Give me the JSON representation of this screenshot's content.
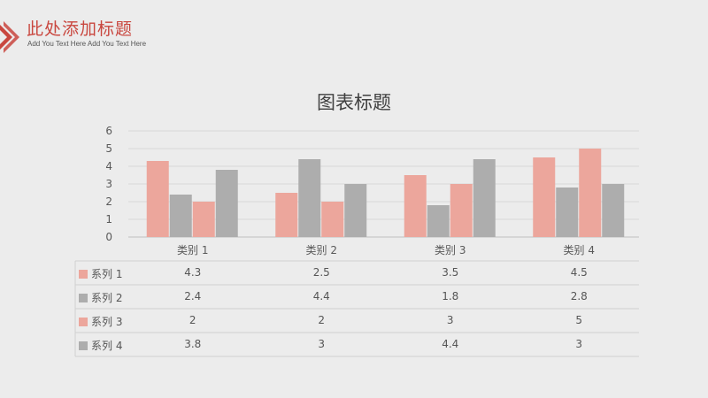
{
  "header": {
    "title": "此处添加标题",
    "subtitle": "Add You Text Here Add You Text Here",
    "accent_color": "#c9473f",
    "logo_icon": "chevron-diamond-icon"
  },
  "chart_data": {
    "type": "bar",
    "title": "图表标题",
    "categories": [
      "类别 1",
      "类别 2",
      "类别 3",
      "类别 4"
    ],
    "series": [
      {
        "name": "系列 1",
        "values": [
          4.3,
          2.5,
          3.5,
          4.5
        ],
        "color": "#eca69c"
      },
      {
        "name": "系列 2",
        "values": [
          2.4,
          4.4,
          1.8,
          2.8
        ],
        "color": "#adadad"
      },
      {
        "name": "系列 3",
        "values": [
          2,
          2,
          3,
          5
        ],
        "color": "#eca69c"
      },
      {
        "name": "系列 4",
        "values": [
          3.8,
          3,
          4.4,
          3
        ],
        "color": "#adadad"
      }
    ],
    "ylim": [
      0,
      6
    ],
    "y_ticks": [
      "0",
      "1",
      "2",
      "3",
      "4",
      "5",
      "6"
    ],
    "grid": true,
    "data_table": {
      "rows": [
        {
          "label": "系列 1",
          "cells": [
            "4.3",
            "2.5",
            "3.5",
            "4.5"
          ]
        },
        {
          "label": "系列 2",
          "cells": [
            "2.4",
            "4.4",
            "1.8",
            "2.8"
          ]
        },
        {
          "label": "系列 3",
          "cells": [
            "2",
            "2",
            "3",
            "5"
          ]
        },
        {
          "label": "系列 4",
          "cells": [
            "3.8",
            "3",
            "4.4",
            "3"
          ]
        }
      ]
    }
  }
}
